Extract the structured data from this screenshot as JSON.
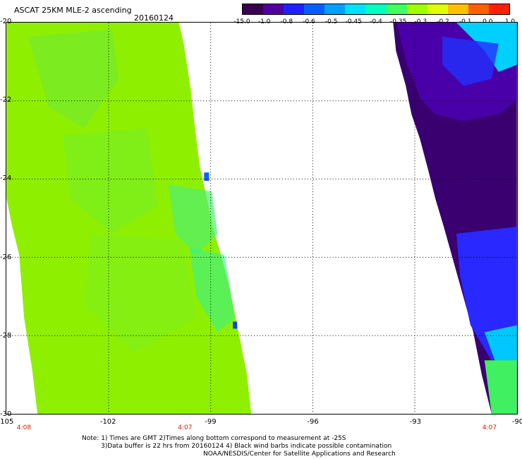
{
  "header": {
    "title": "ASCAT 25KM MLE-2 ascending",
    "date": "20160124"
  },
  "colorbar": {
    "labels": [
      "-15.0",
      "-1.0",
      "-0.8",
      "-0.6",
      "-0.5",
      "-0.45",
      "-0.4",
      "-0.35",
      "-0.3",
      "-0.2",
      "-0.1",
      "0.0",
      "1.0"
    ],
    "colors": [
      "#3a0050",
      "#5000a0",
      "#2020ff",
      "#0060ff",
      "#00a0ff",
      "#00e0ff",
      "#00ffc0",
      "#40ff60",
      "#a0ff00",
      "#e0ff00",
      "#ffc000",
      "#ff6000",
      "#ff2000"
    ]
  },
  "axes": {
    "lat_labels": [
      "-20",
      "-22",
      "-24",
      "-26",
      "-28",
      "-30"
    ],
    "lon_labels": [
      "-105",
      "-102",
      "-99",
      "-96",
      "-93",
      "-90"
    ],
    "time_labels": [
      "4:08",
      "4:07",
      "4:07"
    ]
  },
  "notes": {
    "line1": "Note: 1) Times are GMT 2)Times along bottom correspond to measurement at -25S",
    "line2": "3)Data buffer is 22 hrs from 20160124 4) Black wind barbs indicate possible contamination",
    "line3": "NOAA/NESDIS/Center for Satellite Applications and Research"
  }
}
